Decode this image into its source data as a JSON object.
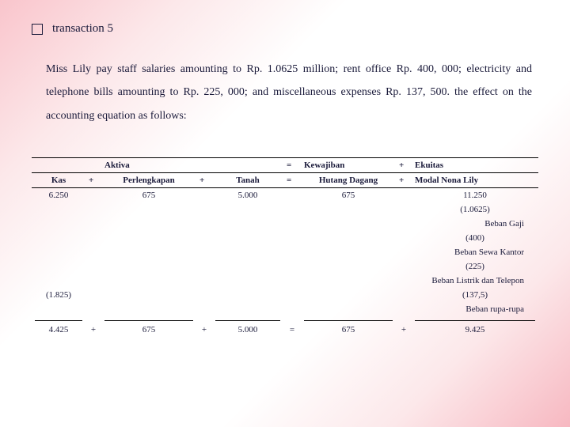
{
  "heading": "transaction 5",
  "paragraph": "Miss Lily pay staff salaries amounting to Rp. 1.0625 million; rent office Rp. 400, 000; electricity and telephone bills amounting to Rp. 225, 000; and miscellaneous expenses Rp. 137, 500. the effect on the accounting equation as follows:",
  "header_top": {
    "aktiva": "Aktiva",
    "eq1": "=",
    "kewajiban": "Kewajiban",
    "plus": "+",
    "ekuitas": "Ekuitas"
  },
  "header_sub": {
    "kas": "Kas",
    "p1": "+",
    "perl": "Perlengkapan",
    "p2": "+",
    "tanah": "Tanah",
    "eq": "=",
    "hd": "Hutang Dagang",
    "p3": "+",
    "modal": "Modal Nona Lily"
  },
  "rows": {
    "initial": {
      "kas": "6.250",
      "perl": "675",
      "tanah": "5.000",
      "hd": "675",
      "modal": "11.250"
    },
    "r1": {
      "modal": "(1.0625)",
      "label": "Beban Gaji"
    },
    "r2": {
      "modal": "(400)",
      "label": "Beban Sewa Kantor"
    },
    "r3": {
      "modal": "(225)",
      "label": "Beban Listrik dan Telepon"
    },
    "r4": {
      "kas": "(1.825)",
      "modal": "(137,5)",
      "label": "Beban rupa-rupa"
    },
    "totals": {
      "kas": "4.425",
      "p1": "+",
      "perl": "675",
      "p2": "+",
      "tanah": "5.000",
      "eq": "=",
      "hd": "675",
      "p3": "+",
      "modal": "9.425"
    }
  }
}
